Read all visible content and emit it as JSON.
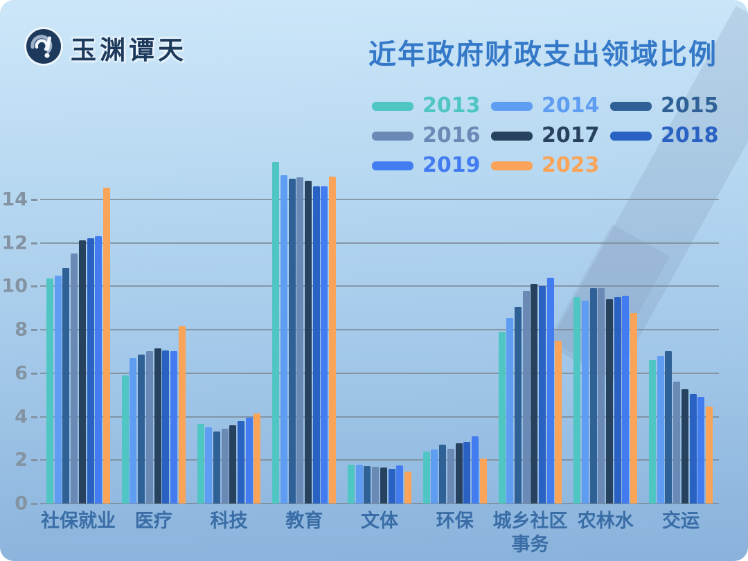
{
  "brand": {
    "logo_text": "玉渊谭天",
    "logo_icon": "wave-exclamation-circle-icon"
  },
  "title": "近年政府财政支出领域比例",
  "chart_data": {
    "type": "bar",
    "title": "近年政府财政支出领域比例",
    "categories": [
      "社保就业",
      "医疗",
      "科技",
      "教育",
      "文体",
      "环保",
      "城乡社区事务",
      "农林水",
      "交运"
    ],
    "series": [
      {
        "name": "2013",
        "color": "#4fc6c3",
        "values": [
          10.35,
          5.9,
          3.65,
          15.7,
          1.8,
          2.4,
          7.9,
          9.5,
          6.6
        ]
      },
      {
        "name": "2014",
        "color": "#5f9df2",
        "values": [
          10.5,
          6.7,
          3.5,
          15.1,
          1.78,
          2.5,
          8.55,
          9.35,
          6.8
        ]
      },
      {
        "name": "2015",
        "color": "#2f6197",
        "values": [
          10.85,
          6.85,
          3.3,
          14.95,
          1.72,
          2.72,
          9.05,
          9.9,
          7.0
        ]
      },
      {
        "name": "2016",
        "color": "#6a89b5",
        "values": [
          11.5,
          7.0,
          3.45,
          15.0,
          1.7,
          2.52,
          9.8,
          9.9,
          5.6
        ]
      },
      {
        "name": "2017",
        "color": "#27425f",
        "values": [
          12.1,
          7.15,
          3.6,
          14.85,
          1.66,
          2.76,
          10.1,
          9.4,
          5.25
        ]
      },
      {
        "name": "2018",
        "color": "#2a62c4",
        "values": [
          12.2,
          7.05,
          3.8,
          14.6,
          1.6,
          2.84,
          10.0,
          9.5,
          5.05
        ]
      },
      {
        "name": "2019",
        "color": "#437cf0",
        "values": [
          12.3,
          7.0,
          3.95,
          14.6,
          1.74,
          3.1,
          10.4,
          9.55,
          4.9
        ]
      },
      {
        "name": "2023",
        "color": "#f9a458",
        "values": [
          14.55,
          8.15,
          4.15,
          15.05,
          1.48,
          2.08,
          7.5,
          8.75,
          4.45
        ]
      }
    ],
    "yticks": [
      0,
      2,
      4,
      6,
      8,
      10,
      12,
      14
    ],
    "ylim": [
      0,
      16
    ],
    "grid": true,
    "legend_position": "top-right",
    "legend_columns": 3
  },
  "colors": {
    "title": "#3478c8",
    "category_label": "#3a6da6",
    "axis_label": "#8493a1",
    "gridline": "#7b8a96",
    "background_top": "#cde7f9",
    "background_bottom": "#89b2db",
    "logo_navy": "#1d3a5c"
  }
}
